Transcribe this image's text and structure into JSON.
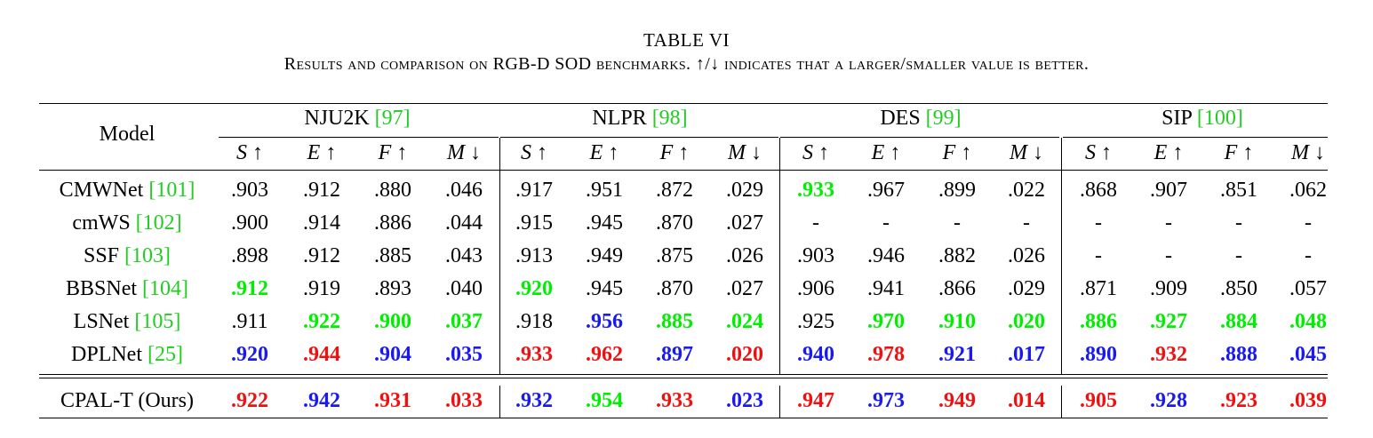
{
  "caption": {
    "title": "TABLE VI",
    "subtitle": "Results and comparison on RGB-D SOD benchmarks. ↑/↓ indicates that a larger/smaller value is better."
  },
  "header": {
    "model": "Model",
    "datasets": [
      {
        "name": "NJU2K",
        "ref": "[97]"
      },
      {
        "name": "NLPR",
        "ref": "[98]"
      },
      {
        "name": "DES",
        "ref": "[99]"
      },
      {
        "name": "SIP",
        "ref": "[100]"
      }
    ],
    "metrics": [
      {
        "letter": "S",
        "arrow": "↑"
      },
      {
        "letter": "E",
        "arrow": "↑"
      },
      {
        "letter": "F",
        "arrow": "↑"
      },
      {
        "letter": "M",
        "arrow": "↓"
      }
    ]
  },
  "colors": {
    "first": "#ee1111",
    "second": "#1a1aee",
    "third": "#00ee00",
    "citation": "#22cc22"
  },
  "rows": [
    {
      "name": "CMWNet",
      "ref": "[101]",
      "values": [
        [
          ".903",
          ""
        ],
        [
          ".912",
          ""
        ],
        [
          ".880",
          ""
        ],
        [
          ".046",
          ""
        ],
        [
          ".917",
          ""
        ],
        [
          ".951",
          ""
        ],
        [
          ".872",
          ""
        ],
        [
          ".029",
          ""
        ],
        [
          ".933",
          "green"
        ],
        [
          ".967",
          ""
        ],
        [
          ".899",
          ""
        ],
        [
          ".022",
          ""
        ],
        [
          ".868",
          ""
        ],
        [
          ".907",
          ""
        ],
        [
          ".851",
          ""
        ],
        [
          ".062",
          ""
        ]
      ]
    },
    {
      "name": "cmWS",
      "ref": "[102]",
      "values": [
        [
          ".900",
          ""
        ],
        [
          ".914",
          ""
        ],
        [
          ".886",
          ""
        ],
        [
          ".044",
          ""
        ],
        [
          ".915",
          ""
        ],
        [
          ".945",
          ""
        ],
        [
          ".870",
          ""
        ],
        [
          ".027",
          ""
        ],
        [
          "-",
          ""
        ],
        [
          "-",
          ""
        ],
        [
          "-",
          ""
        ],
        [
          "-",
          ""
        ],
        [
          "-",
          ""
        ],
        [
          "-",
          ""
        ],
        [
          "-",
          ""
        ],
        [
          "-",
          ""
        ]
      ]
    },
    {
      "name": "SSF",
      "ref": "[103]",
      "values": [
        [
          ".898",
          ""
        ],
        [
          ".912",
          ""
        ],
        [
          ".885",
          ""
        ],
        [
          ".043",
          ""
        ],
        [
          ".913",
          ""
        ],
        [
          ".949",
          ""
        ],
        [
          ".875",
          ""
        ],
        [
          ".026",
          ""
        ],
        [
          ".903",
          ""
        ],
        [
          ".946",
          ""
        ],
        [
          ".882",
          ""
        ],
        [
          ".026",
          ""
        ],
        [
          "-",
          ""
        ],
        [
          "-",
          ""
        ],
        [
          "-",
          ""
        ],
        [
          "-",
          ""
        ]
      ]
    },
    {
      "name": "BBSNet",
      "ref": "[104]",
      "values": [
        [
          ".912",
          "green"
        ],
        [
          ".919",
          ""
        ],
        [
          ".893",
          ""
        ],
        [
          ".040",
          ""
        ],
        [
          ".920",
          "green"
        ],
        [
          ".945",
          ""
        ],
        [
          ".870",
          ""
        ],
        [
          ".027",
          ""
        ],
        [
          ".906",
          ""
        ],
        [
          ".941",
          ""
        ],
        [
          ".866",
          ""
        ],
        [
          ".029",
          ""
        ],
        [
          ".871",
          ""
        ],
        [
          ".909",
          ""
        ],
        [
          ".850",
          ""
        ],
        [
          ".057",
          ""
        ]
      ]
    },
    {
      "name": "LSNet",
      "ref": "[105]",
      "values": [
        [
          ".911",
          ""
        ],
        [
          ".922",
          "green"
        ],
        [
          ".900",
          "green"
        ],
        [
          ".037",
          "green"
        ],
        [
          ".918",
          ""
        ],
        [
          ".956",
          "blue"
        ],
        [
          ".885",
          "green"
        ],
        [
          ".024",
          "green"
        ],
        [
          ".925",
          ""
        ],
        [
          ".970",
          "green"
        ],
        [
          ".910",
          "green"
        ],
        [
          ".020",
          "green"
        ],
        [
          ".886",
          "green"
        ],
        [
          ".927",
          "green"
        ],
        [
          ".884",
          "green"
        ],
        [
          ".048",
          "green"
        ]
      ]
    },
    {
      "name": "DPLNet",
      "ref": "[25]",
      "values": [
        [
          ".920",
          "blue"
        ],
        [
          ".944",
          "red"
        ],
        [
          ".904",
          "blue"
        ],
        [
          ".035",
          "blue"
        ],
        [
          ".933",
          "red"
        ],
        [
          ".962",
          "red"
        ],
        [
          ".897",
          "blue"
        ],
        [
          ".020",
          "red"
        ],
        [
          ".940",
          "blue"
        ],
        [
          ".978",
          "red"
        ],
        [
          ".921",
          "blue"
        ],
        [
          ".017",
          "blue"
        ],
        [
          ".890",
          "blue"
        ],
        [
          ".932",
          "red"
        ],
        [
          ".888",
          "blue"
        ],
        [
          ".045",
          "blue"
        ]
      ]
    },
    {
      "name": "CPAL-T (Ours)",
      "ref": "",
      "values": [
        [
          ".922",
          "red"
        ],
        [
          ".942",
          "blue"
        ],
        [
          ".931",
          "red"
        ],
        [
          ".033",
          "red"
        ],
        [
          ".932",
          "blue"
        ],
        [
          ".954",
          "green"
        ],
        [
          ".933",
          "red"
        ],
        [
          ".023",
          "blue"
        ],
        [
          ".947",
          "red"
        ],
        [
          ".973",
          "blue"
        ],
        [
          ".949",
          "red"
        ],
        [
          ".014",
          "red"
        ],
        [
          ".905",
          "red"
        ],
        [
          ".928",
          "blue"
        ],
        [
          ".923",
          "red"
        ],
        [
          ".039",
          "red"
        ]
      ]
    }
  ]
}
